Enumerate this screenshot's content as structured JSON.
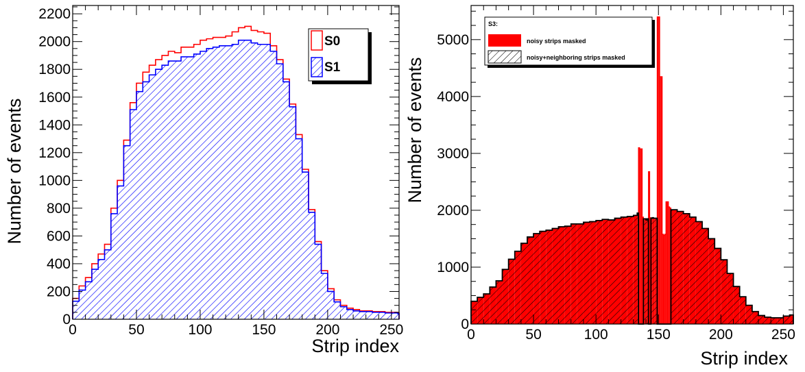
{
  "colors": {
    "s0": "#ff0000",
    "s1": "#0000ff",
    "s3_fill": "#ff0000",
    "s3_line": "#000000",
    "hatch": "#000000"
  },
  "chart_data": [
    {
      "type": "histogram",
      "xlabel": "Strip index",
      "ylabel": "Number of events",
      "xlim": [
        0,
        256
      ],
      "ylim": [
        0,
        2260
      ],
      "xticks": [
        0,
        50,
        100,
        150,
        200,
        250
      ],
      "yticks": [
        0,
        200,
        400,
        600,
        800,
        1000,
        1200,
        1400,
        1600,
        1800,
        2000,
        2200
      ],
      "grid": false,
      "legend_position": "top-right",
      "series": [
        {
          "name": "S0",
          "style": "red outline",
          "x": [
            0,
            5,
            10,
            15,
            20,
            25,
            30,
            35,
            40,
            45,
            50,
            55,
            60,
            65,
            70,
            75,
            80,
            85,
            90,
            95,
            100,
            105,
            110,
            115,
            120,
            125,
            130,
            135,
            140,
            145,
            150,
            155,
            160,
            165,
            170,
            175,
            180,
            185,
            190,
            195,
            200,
            205,
            210,
            215,
            220,
            225,
            230,
            235,
            240,
            245,
            250,
            255
          ],
          "y": [
            150,
            240,
            300,
            400,
            470,
            540,
            800,
            1000,
            1290,
            1560,
            1700,
            1780,
            1830,
            1870,
            1900,
            1930,
            1920,
            1960,
            1960,
            1980,
            2010,
            2020,
            2030,
            2030,
            2040,
            2070,
            2100,
            2110,
            2080,
            2070,
            2060,
            1970,
            1870,
            1730,
            1550,
            1330,
            1080,
            790,
            560,
            350,
            220,
            140,
            100,
            80,
            70,
            60,
            60,
            55,
            55,
            50,
            50,
            45
          ]
        },
        {
          "name": "S1",
          "style": "blue outline, blue diagonal hatch",
          "x": [
            0,
            5,
            10,
            15,
            20,
            25,
            30,
            35,
            40,
            45,
            50,
            55,
            60,
            65,
            70,
            75,
            80,
            85,
            90,
            95,
            100,
            105,
            110,
            115,
            120,
            125,
            130,
            135,
            140,
            145,
            150,
            155,
            160,
            165,
            170,
            175,
            180,
            185,
            190,
            195,
            200,
            205,
            210,
            215,
            220,
            225,
            230,
            235,
            240,
            245,
            250,
            255
          ],
          "y": [
            130,
            210,
            270,
            360,
            430,
            500,
            760,
            960,
            1250,
            1510,
            1640,
            1710,
            1760,
            1800,
            1830,
            1860,
            1860,
            1890,
            1890,
            1910,
            1930,
            1950,
            1960,
            1970,
            1970,
            1980,
            2010,
            2010,
            1990,
            1980,
            1980,
            1930,
            1840,
            1710,
            1530,
            1300,
            1060,
            770,
            540,
            330,
            200,
            125,
            90,
            70,
            60,
            55,
            55,
            50,
            50,
            45,
            45,
            40
          ]
        }
      ]
    },
    {
      "type": "histogram",
      "xlabel": "Strip index",
      "ylabel": "Number of events",
      "xlim": [
        0,
        258
      ],
      "ylim": [
        0,
        5600
      ],
      "xticks": [
        0,
        50,
        100,
        150,
        200,
        250
      ],
      "yticks": [
        0,
        1000,
        2000,
        3000,
        4000,
        5000
      ],
      "grid": false,
      "legend_position": "top-left",
      "legend_title": "S3:",
      "series": [
        {
          "name": "noisy strips masked",
          "style": "solid red fill",
          "x": [
            0,
            5,
            10,
            15,
            20,
            25,
            30,
            35,
            40,
            45,
            50,
            55,
            60,
            65,
            70,
            75,
            80,
            85,
            90,
            95,
            100,
            105,
            110,
            115,
            120,
            125,
            130,
            133,
            134,
            135,
            136,
            137,
            138,
            139,
            140,
            141,
            142,
            143,
            144,
            145,
            146,
            147,
            148,
            149,
            150,
            151,
            152,
            153,
            154,
            155,
            156,
            157,
            158,
            159,
            160,
            165,
            170,
            175,
            180,
            185,
            190,
            195,
            200,
            205,
            210,
            215,
            220,
            225,
            230,
            235,
            240,
            245,
            250,
            255
          ],
          "y": [
            400,
            470,
            530,
            650,
            760,
            960,
            1140,
            1280,
            1420,
            1530,
            1590,
            1630,
            1650,
            1680,
            1710,
            1720,
            1760,
            1760,
            1790,
            1800,
            1820,
            1840,
            1830,
            1860,
            1880,
            1890,
            1910,
            1950,
            3100,
            3080,
            3080,
            1880,
            1850,
            1850,
            1830,
            1850,
            2680,
            1870,
            1860,
            1870,
            1860,
            1860,
            1860,
            5400,
            5400,
            4350,
            4350,
            1580,
            1560,
            1580,
            2150,
            2150,
            2060,
            2040,
            2010,
            1980,
            1940,
            1880,
            1800,
            1680,
            1500,
            1330,
            1130,
            890,
            660,
            480,
            330,
            220,
            150,
            120,
            110,
            110,
            140,
            160
          ]
        },
        {
          "name": "noisy+neighboring strips masked",
          "style": "black outline, black diagonal hatch",
          "x": [
            0,
            5,
            10,
            15,
            20,
            25,
            30,
            35,
            40,
            45,
            50,
            55,
            60,
            65,
            70,
            75,
            80,
            85,
            90,
            95,
            100,
            105,
            110,
            115,
            120,
            125,
            130,
            133,
            134,
            135,
            136,
            137,
            138,
            139,
            140,
            141,
            142,
            143,
            144,
            145,
            146,
            147,
            148,
            149,
            150,
            151,
            152,
            153,
            154,
            155,
            156,
            157,
            158,
            159,
            160,
            165,
            170,
            175,
            180,
            185,
            190,
            195,
            200,
            205,
            210,
            215,
            220,
            225,
            230,
            235,
            240,
            245,
            250,
            255
          ],
          "y": [
            400,
            470,
            530,
            650,
            760,
            960,
            1140,
            1280,
            1420,
            1530,
            1590,
            1630,
            1650,
            1680,
            1710,
            1720,
            1760,
            1760,
            1790,
            1800,
            1820,
            1840,
            1830,
            1860,
            1880,
            1890,
            1910,
            1950,
            0,
            0,
            0,
            0,
            1850,
            1850,
            1830,
            1850,
            0,
            0,
            1860,
            1870,
            1860,
            1860,
            1860,
            0,
            0,
            0,
            0,
            0,
            0,
            0,
            0,
            0,
            0,
            0,
            2010,
            1980,
            1940,
            1880,
            1800,
            1680,
            1500,
            1330,
            1130,
            890,
            660,
            480,
            330,
            220,
            150,
            120,
            110,
            110,
            140,
            160
          ]
        }
      ]
    }
  ]
}
